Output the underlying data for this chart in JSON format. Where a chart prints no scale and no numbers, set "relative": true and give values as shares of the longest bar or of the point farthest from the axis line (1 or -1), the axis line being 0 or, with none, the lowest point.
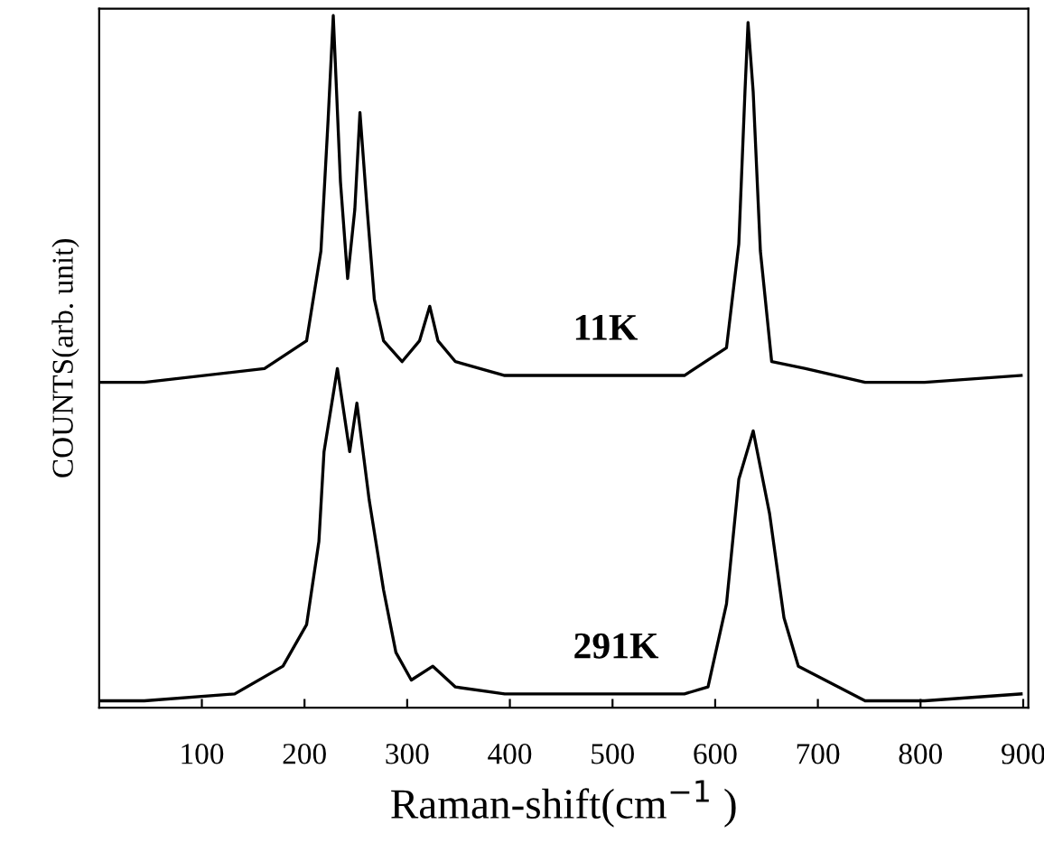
{
  "chart_data": {
    "type": "line",
    "relative": true,
    "xlabel": "Raman-shift(cm$^{−1}$ )",
    "ylabel": "COUNTS(arb. unit)",
    "xlim": [
      0,
      905
    ],
    "xticks": [
      100,
      200,
      300,
      400,
      500,
      600,
      700,
      800,
      900
    ],
    "grid": false,
    "legend": false,
    "marker": "none",
    "line_style": "solid",
    "series": [
      {
        "name": "11K",
        "color": "#000000",
        "x": [
          0,
          44,
          161,
          202,
          216,
          223,
          228,
          235,
          242,
          249,
          254,
          261,
          268,
          277,
          295,
          312,
          322,
          330,
          347,
          395,
          570,
          611,
          623,
          629,
          632,
          637,
          644,
          655,
          688,
          746,
          804,
          898
        ],
        "values": [
          0.47,
          0.47,
          0.49,
          0.53,
          0.66,
          0.85,
          1.0,
          0.76,
          0.62,
          0.72,
          0.86,
          0.72,
          0.59,
          0.53,
          0.5,
          0.53,
          0.58,
          0.53,
          0.5,
          0.48,
          0.48,
          0.52,
          0.67,
          0.89,
          0.99,
          0.89,
          0.66,
          0.5,
          0.49,
          0.47,
          0.47,
          0.48
        ]
      },
      {
        "name": "291K",
        "color": "#000000",
        "x": [
          0,
          44,
          132,
          179,
          202,
          214,
          219,
          232,
          244,
          251,
          263,
          277,
          289,
          304,
          325,
          347,
          395,
          570,
          593,
          611,
          623,
          637,
          653,
          667,
          681,
          746,
          804,
          898
        ],
        "values": [
          0.01,
          0.01,
          0.02,
          0.06,
          0.12,
          0.24,
          0.37,
          0.49,
          0.37,
          0.44,
          0.3,
          0.17,
          0.08,
          0.04,
          0.06,
          0.03,
          0.02,
          0.02,
          0.03,
          0.15,
          0.33,
          0.4,
          0.28,
          0.13,
          0.06,
          0.01,
          0.01,
          0.02
        ]
      }
    ]
  }
}
